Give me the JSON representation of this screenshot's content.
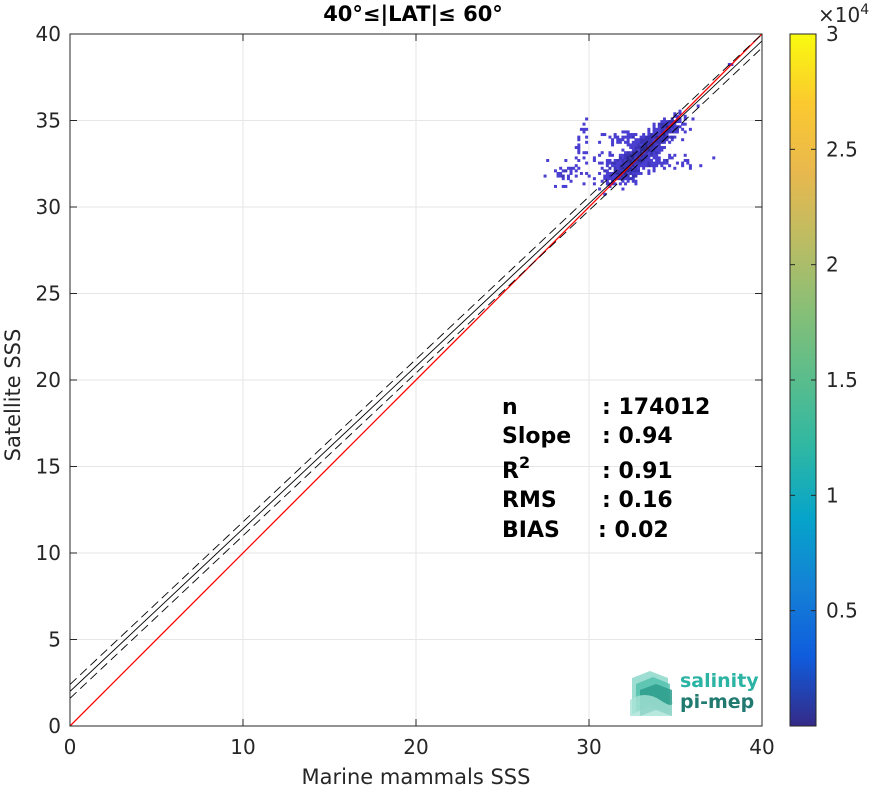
{
  "chart_data": {
    "type": "heatmap",
    "title": "40°≤|LAT|≤ 60°",
    "xlabel": "Marine mammals SSS",
    "ylabel": "Satellite SSS",
    "xlim": [
      0,
      40
    ],
    "ylim": [
      0,
      40
    ],
    "xticks": [
      "0",
      "10",
      "20",
      "30",
      "40"
    ],
    "yticks": [
      "0",
      "5",
      "10",
      "15",
      "20",
      "25",
      "30",
      "35",
      "40"
    ],
    "grid": true,
    "lines": [
      {
        "name": "1:1",
        "color": "#ff0000",
        "style": "solid",
        "x": [
          0,
          40
        ],
        "y": [
          0,
          40
        ]
      },
      {
        "name": "fit",
        "color": "#000000",
        "style": "solid",
        "x": [
          0,
          40
        ],
        "y": [
          2.0,
          39.6
        ]
      },
      {
        "name": "fit-upper",
        "color": "#000000",
        "style": "dashed",
        "x": [
          0,
          40
        ],
        "y": [
          2.4,
          40.0
        ]
      },
      {
        "name": "fit-lower",
        "color": "#000000",
        "style": "dashed",
        "x": [
          0,
          40
        ],
        "y": [
          1.6,
          39.2
        ]
      }
    ],
    "density_clusters": [
      {
        "x": 33.2,
        "y": 33.3,
        "sx": 1.0,
        "sy": 0.8,
        "corr": 0.88,
        "n": 650
      },
      {
        "x": 32.0,
        "y": 32.1,
        "sx": 0.5,
        "sy": 0.35,
        "corr": 0.2,
        "n": 200
      },
      {
        "x": 34.6,
        "y": 34.7,
        "sx": 0.4,
        "sy": 0.3,
        "corr": 0.5,
        "n": 90
      },
      {
        "x": 33.2,
        "y": 32.6,
        "sx": 1.5,
        "sy": 0.25,
        "corr": 0.0,
        "n": 140
      },
      {
        "x": 32.5,
        "y": 34.0,
        "sx": 0.9,
        "sy": 0.15,
        "corr": 0.0,
        "n": 60
      },
      {
        "x": 28.6,
        "y": 31.9,
        "sx": 0.5,
        "sy": 0.3,
        "corr": 0.0,
        "n": 30
      },
      {
        "x": 29.5,
        "y": 33.4,
        "sx": 0.2,
        "sy": 1.0,
        "corr": 0.0,
        "n": 25
      }
    ],
    "density_outliers": [
      [
        38.1,
        38.3
      ],
      [
        38.3,
        38.2
      ],
      [
        28.8,
        31.7
      ],
      [
        28.5,
        31.6
      ],
      [
        29.8,
        35.1
      ]
    ],
    "stats": [
      {
        "label": "n",
        "value": ": 174012"
      },
      {
        "label": "Slope",
        "value": ": 0.94"
      },
      {
        "label": "R",
        "sup": "2",
        "value": ": 0.91"
      },
      {
        "label": "RMS",
        "value": ": 0.16"
      },
      {
        "label": "BIAS",
        "value": ": 0.02"
      }
    ],
    "colorbar": {
      "colormap": "parula",
      "range": [
        0,
        30000
      ],
      "ticks": [
        "0.5",
        "1",
        "1.5",
        "2",
        "2.5",
        "3"
      ],
      "exponent_label": "×10",
      "exponent": "4"
    }
  },
  "logo": {
    "line1": "salinity",
    "line2": "pi-mep"
  }
}
